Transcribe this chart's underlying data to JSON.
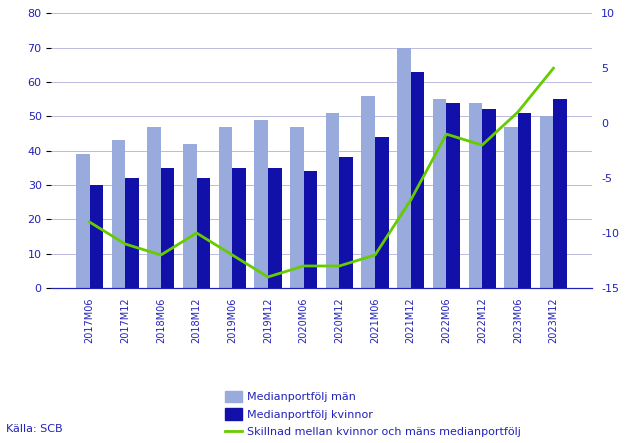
{
  "categories": [
    "2017M06",
    "2017M12",
    "2018M06",
    "2018M12",
    "2019M06",
    "2019M12",
    "2020M06",
    "2020M12",
    "2021M06",
    "2021M12",
    "2022M06",
    "2022M12",
    "2023M06",
    "2023M12"
  ],
  "man": [
    39,
    43,
    47,
    42,
    47,
    49,
    47,
    51,
    56,
    70,
    55,
    54,
    47,
    50
  ],
  "kvinnor": [
    30,
    32,
    35,
    32,
    35,
    35,
    34,
    38,
    44,
    63,
    54,
    52,
    51,
    55
  ],
  "skillnad": [
    -9,
    -11,
    -12,
    -10,
    -12,
    -14,
    -13,
    -13,
    -12,
    -7,
    -1,
    -2,
    1,
    5
  ],
  "bar_color_man": "#99aadd",
  "bar_color_kvinnor": "#1111aa",
  "line_color": "#66cc00",
  "left_ylim": [
    0,
    80
  ],
  "right_ylim": [
    -15,
    10
  ],
  "left_yticks": [
    0,
    10,
    20,
    30,
    40,
    50,
    60,
    70,
    80
  ],
  "right_yticks": [
    -15,
    -10,
    -5,
    0,
    5,
    10
  ],
  "legend_man": "Medianportfölj män",
  "legend_kvinnor": "Medianportfölj kvinnor",
  "legend_skillnad": "Skillnad mellan kvinnor och mäns medianportfölj",
  "source": "Källa: SCB",
  "axis_color": "#2222bb",
  "background_color": "#ffffff",
  "grid_color": "#bbbbdd",
  "fig_width": 6.43,
  "fig_height": 4.43,
  "dpi": 100
}
